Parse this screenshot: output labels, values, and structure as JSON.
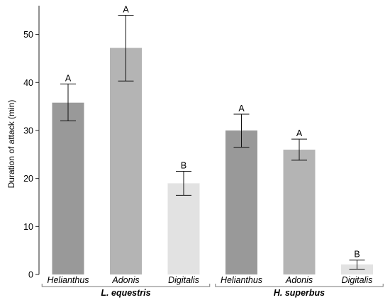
{
  "chart_data": {
    "type": "bar",
    "ylabel": "Duration of attack (min)",
    "ylim": [
      0,
      56
    ],
    "yticks": [
      0,
      10,
      20,
      30,
      40,
      50
    ],
    "grid": false,
    "categories": [
      "Helianthus",
      "Adonis",
      "Digitalis",
      "Helianthus",
      "Adonis",
      "Digitalis"
    ],
    "groups": [
      {
        "label": "L. equestris",
        "members": [
          0,
          1,
          2
        ]
      },
      {
        "label": "H. superbus",
        "members": [
          3,
          4,
          5
        ]
      }
    ],
    "values": [
      35.8,
      47.2,
      19.0,
      30.0,
      26.0,
      2.1
    ],
    "error_high": [
      39.7,
      54.0,
      21.5,
      33.4,
      28.2,
      3.0
    ],
    "error_low": [
      32.0,
      40.3,
      16.5,
      26.5,
      23.8,
      1.1
    ],
    "significance": [
      "A",
      "A",
      "B",
      "A",
      "A",
      "B"
    ],
    "colors": [
      "#999999",
      "#b4b4b4",
      "#e2e2e2",
      "#999999",
      "#b4b4b4",
      "#e2e2e2"
    ]
  }
}
